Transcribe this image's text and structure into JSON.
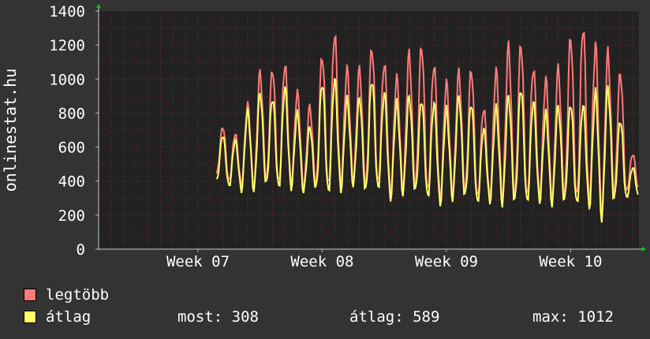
{
  "watermark_left": "onlinestat.hu",
  "colors": {
    "background": "#333333",
    "plot_background": "#222222",
    "grid": "#6a2a2a",
    "max_series": "#ff7a7a",
    "avg_series": "#ffff66",
    "axis_arrow": "#00cc00"
  },
  "legend": {
    "max_label": "legtöbb",
    "avg_label": "átlag",
    "now_text": "most: 308",
    "avg_text": "átlag: 589",
    "max_text": "max: 1012"
  },
  "chart_data": {
    "type": "line",
    "title": "",
    "xlabel": "",
    "ylabel": "",
    "ylim": [
      0,
      1400
    ],
    "yticks": [
      0,
      200,
      400,
      600,
      800,
      1000,
      1200,
      1400
    ],
    "x_domain_days": [
      0,
      43.5
    ],
    "xticks": [
      {
        "label": "Week 07",
        "day": 8
      },
      {
        "label": "Week 08",
        "day": 18
      },
      {
        "label": "Week 09",
        "day": 28
      },
      {
        "label": "Week 10",
        "day": 38
      }
    ],
    "grid": true,
    "legend_position": "bottom-left",
    "series": [
      {
        "name": "legtöbb",
        "color": "#ff7a7a",
        "daily_peaks": [
          720,
          680,
          850,
          1040,
          1060,
          1090,
          920,
          840,
          1140,
          1270,
          1060,
          1060,
          1190,
          1100,
          1010,
          1150,
          1200,
          1090,
          980,
          1040,
          1060,
          830,
          1050,
          1190,
          1210,
          1070,
          1000,
          1060,
          1250,
          1310,
          1200,
          1150,
          1040,
          560
        ],
        "daily_troughs": [
          440,
          400,
          380,
          370,
          400,
          380,
          380,
          360,
          370,
          360,
          380,
          400,
          370,
          380,
          330,
          360,
          370,
          330,
          300,
          330,
          340,
          300,
          310,
          300,
          310,
          300,
          310,
          300,
          310,
          290,
          280,
          210,
          330,
          340
        ]
      },
      {
        "name": "átlag",
        "color": "#ffff66",
        "daily_peaks": [
          670,
          640,
          810,
          920,
          890,
          950,
          800,
          720,
          980,
          1000,
          880,
          890,
          1000,
          920,
          860,
          900,
          880,
          860,
          820,
          900,
          860,
          710,
          830,
          900,
          950,
          870,
          800,
          840,
          860,
          850,
          920,
          950,
          760,
          480
        ],
        "daily_troughs": [
          400,
          370,
          350,
          350,
          380,
          360,
          360,
          340,
          350,
          330,
          350,
          380,
          340,
          350,
          300,
          330,
          340,
          300,
          270,
          300,
          310,
          270,
          280,
          270,
          280,
          270,
          280,
          270,
          280,
          260,
          250,
          190,
          290,
          300
        ]
      }
    ]
  }
}
